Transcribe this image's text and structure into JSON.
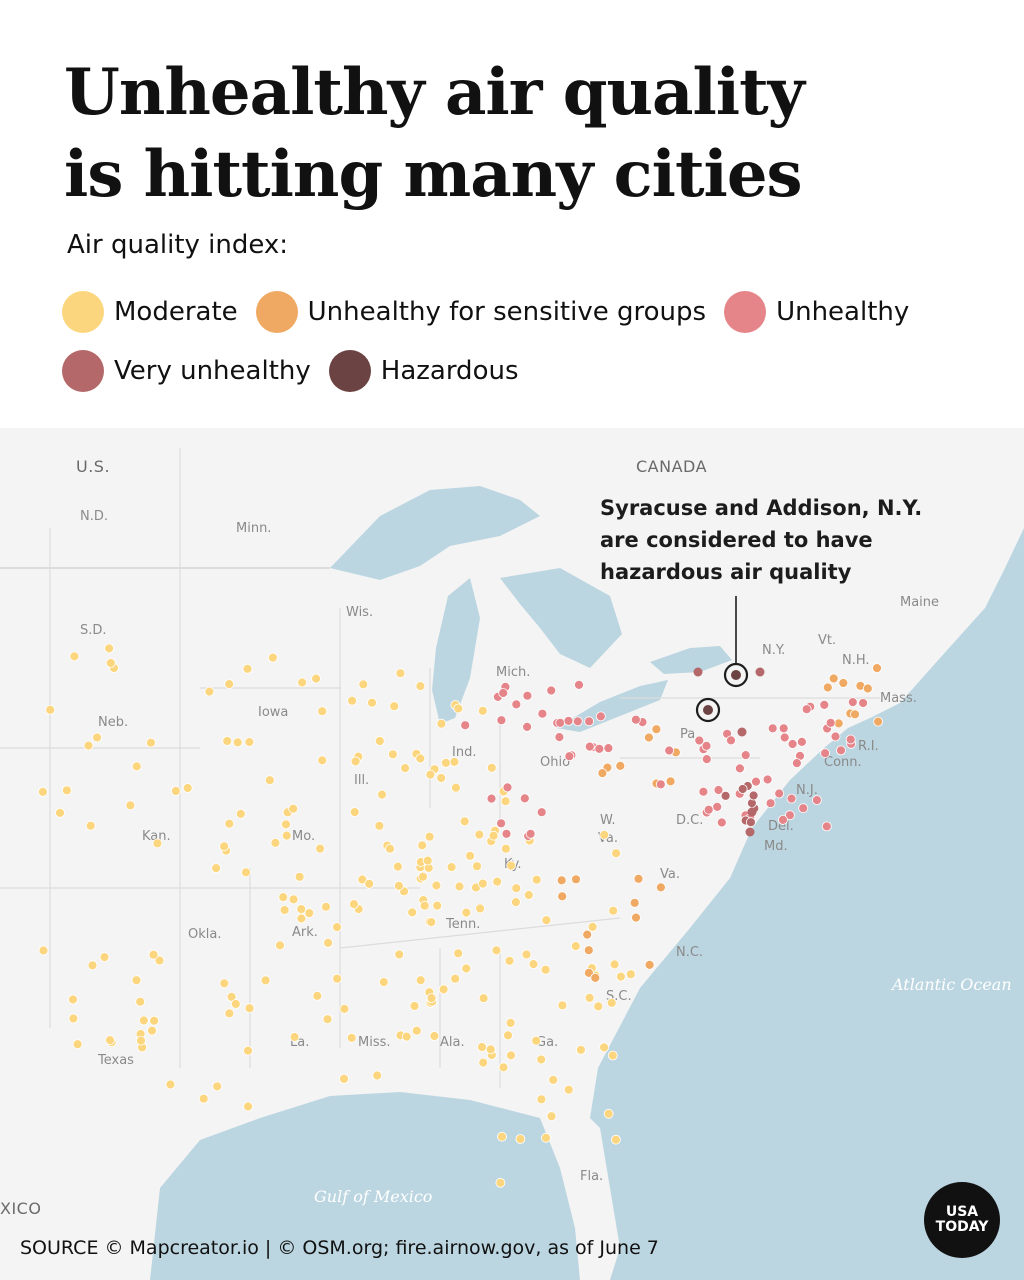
{
  "header": {
    "title_line1": "Unhealthy air quality",
    "title_line2": "is hitting many cities"
  },
  "legend": {
    "heading": "Air quality index:",
    "items": [
      {
        "label": "Moderate",
        "color": "#fcd67e"
      },
      {
        "label": "Unhealthy for sensitive groups",
        "color": "#f0a963"
      },
      {
        "label": "Unhealthy",
        "color": "#e5858a"
      },
      {
        "label": "Very unhealthy",
        "color": "#b46869"
      },
      {
        "label": "Hazardous",
        "color": "#6b4343"
      }
    ]
  },
  "map": {
    "labels": {
      "country_us": "U.S.",
      "country_canada": "CANADA",
      "mexico": "XICO",
      "nd": "N.D.",
      "sd": "S.D.",
      "neb": "Neb.",
      "kan": "Kan.",
      "okla": "Okla.",
      "texas": "Texas",
      "minn": "Minn.",
      "iowa": "Iowa",
      "mo": "Mo.",
      "ark": "Ark.",
      "la": "La.",
      "wis": "Wis.",
      "ill": "Ill.",
      "miss": "Miss.",
      "mich": "Mich.",
      "ind": "Ind.",
      "ky": "Ky.",
      "tenn": "Tenn.",
      "ala": "Ala.",
      "ga": "Ga.",
      "fla": "Fla.",
      "ohio": "Ohio",
      "wva": "W.\nVa.",
      "va": "Va.",
      "nc": "N.C.",
      "sc": "S.C.",
      "pa": "Pa.",
      "ny": "N.Y.",
      "vt": "Vt.",
      "nh": "N.H.",
      "maine": "Maine",
      "mass": "Mass.",
      "ri": "R.I.",
      "conn": "Conn.",
      "nj": "N.J.",
      "del": "Del.",
      "md": "Md.",
      "dc": "D.C.",
      "atlantic": "Atlantic Ocean",
      "gulf": "Gulf of Mexico"
    },
    "annotation": "Syracuse and Addison, N.Y. are considered to have hazardous air quality"
  },
  "footer": {
    "source": "SOURCE © Mapcreator.io | © OSM.org; fire.airnow.gov, as of June 7",
    "logo_line1": "USA",
    "logo_line2": "TODAY"
  }
}
